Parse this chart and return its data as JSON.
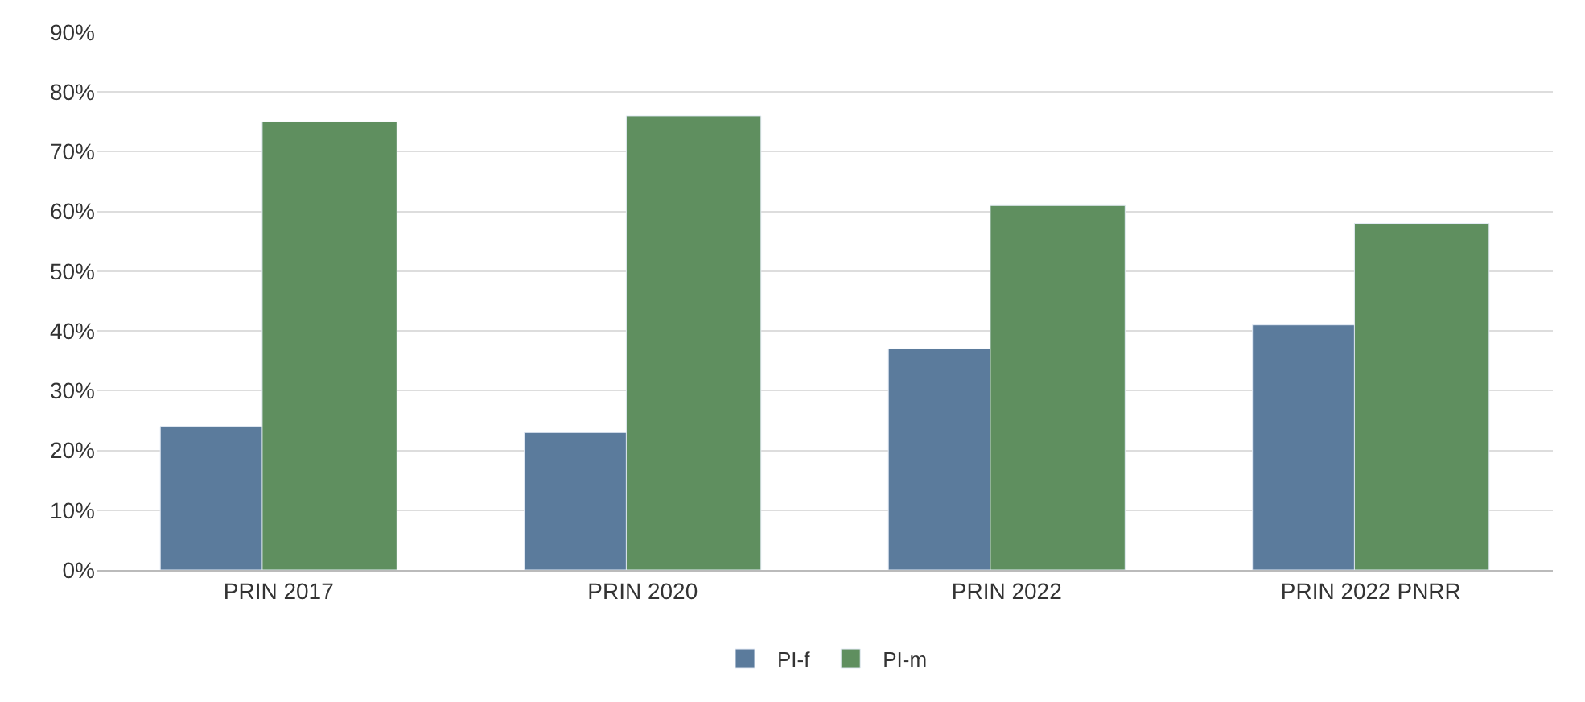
{
  "chart_data": {
    "type": "bar",
    "categories": [
      "PRIN 2017",
      "PRIN 2020",
      "PRIN 2022",
      "PRIN 2022 PNRR"
    ],
    "series": [
      {
        "name": "PI-f",
        "color": "#5b7b9c",
        "values": [
          24,
          23,
          37,
          41
        ]
      },
      {
        "name": "PI-m",
        "color": "#5f8f5f",
        "values": [
          75,
          76,
          61,
          58
        ]
      }
    ],
    "ylim": [
      0,
      90
    ],
    "yticks": [
      {
        "value": 0,
        "label": "0%"
      },
      {
        "value": 10,
        "label": "10%"
      },
      {
        "value": 20,
        "label": "20%"
      },
      {
        "value": 30,
        "label": "30%"
      },
      {
        "value": 40,
        "label": "40%"
      },
      {
        "value": 50,
        "label": "50%"
      },
      {
        "value": 60,
        "label": "60%"
      },
      {
        "value": 70,
        "label": "70%"
      },
      {
        "value": 80,
        "label": "80%"
      },
      {
        "value": 90,
        "label": "90%"
      }
    ],
    "grid": "y",
    "legend": "bottom"
  }
}
